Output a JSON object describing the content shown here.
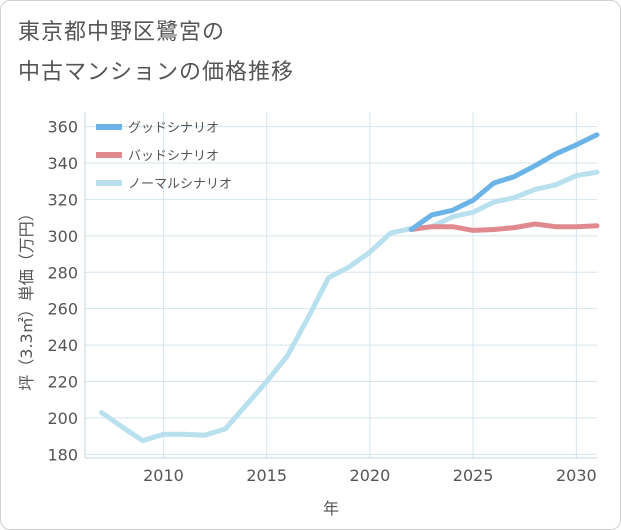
{
  "title_line1": "東京都中野区鷺宮の",
  "title_line2": "中古マンションの価格推移",
  "chart_data": {
    "type": "line",
    "xlabel": "年",
    "ylabel": "坪（3.3㎡）単価（万円）",
    "xlim": [
      2006.2,
      2031
    ],
    "ylim": [
      178,
      368
    ],
    "x_ticks": [
      2010,
      2015,
      2020,
      2025,
      2030
    ],
    "y_ticks": [
      180,
      200,
      220,
      240,
      260,
      280,
      300,
      320,
      340,
      360
    ],
    "grid": true,
    "legend_position": "top-left",
    "series": [
      {
        "name": "グッドシナリオ",
        "color": "#6cb4e8",
        "x": [
          2022,
          2023,
          2024,
          2025,
          2026,
          2027,
          2028,
          2029,
          2030,
          2031
        ],
        "y": [
          303.5,
          311.5,
          314,
          319.5,
          329,
          332.5,
          338.5,
          345,
          350,
          355.5
        ]
      },
      {
        "name": "バッドシナリオ",
        "color": "#e08a8f",
        "x": [
          2022,
          2023,
          2024,
          2025,
          2026,
          2027,
          2028,
          2029,
          2030,
          2031
        ],
        "y": [
          303.5,
          305,
          305,
          303,
          303.5,
          304.5,
          306.5,
          305,
          305,
          305.5
        ]
      },
      {
        "name": "ノーマルシナリオ",
        "color": "#b9e0ee",
        "x": [
          2007,
          2008,
          2009,
          2010,
          2011,
          2012,
          2013,
          2014,
          2015,
          2016,
          2017,
          2018,
          2019,
          2020,
          2021,
          2022,
          2023,
          2024,
          2025,
          2026,
          2027,
          2028,
          2029,
          2030,
          2031
        ],
        "y": [
          203,
          195,
          187.5,
          191,
          191,
          190.5,
          194,
          207,
          220,
          234,
          255,
          277,
          283,
          291,
          301.5,
          304,
          305,
          310.5,
          313,
          318.5,
          321,
          325.5,
          328,
          333,
          335
        ]
      }
    ]
  }
}
